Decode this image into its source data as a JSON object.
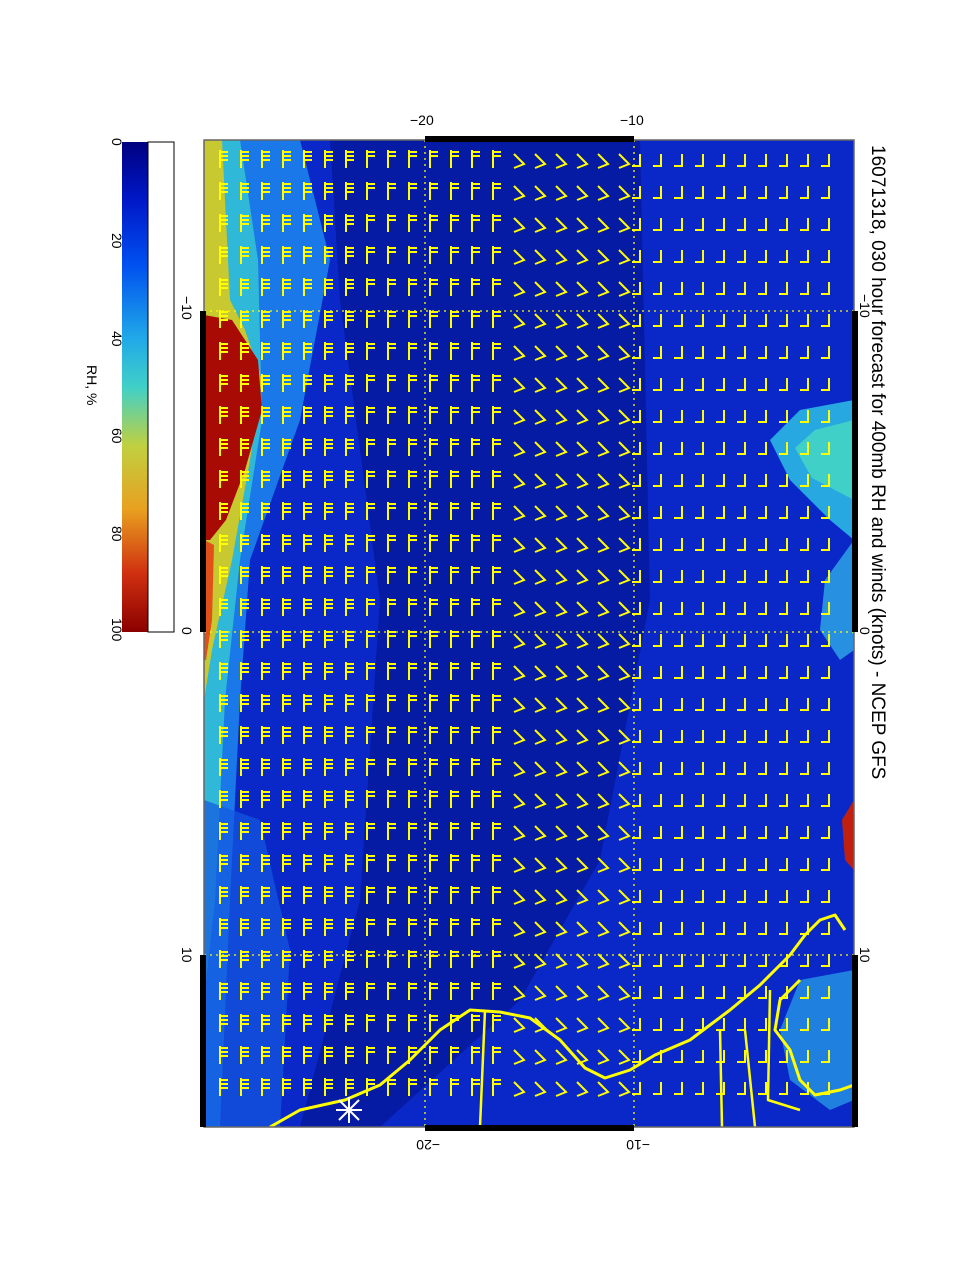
{
  "map": {
    "title": "16071318, 030 hour forecast for 400mb RH and winds (knots) - NCEP GFS",
    "variable": "400mb RH and winds (knots)",
    "source": "NCEP GFS",
    "orientation": "rotated 90 degrees clockwise",
    "top_axis_ticks": [
      "−20",
      "−10"
    ],
    "bottom_axis_ticks": [
      "−20",
      "−10"
    ],
    "left_axis_ticks": [
      "−10",
      "0",
      "10"
    ],
    "right_axis_ticks": [
      "−10",
      "0",
      "10"
    ],
    "colorbar": {
      "label": "RH, %",
      "ticks": [
        "0",
        "20",
        "40",
        "60",
        "80",
        "100"
      ],
      "colors": [
        "#000080",
        "#0018c8",
        "#0050f0",
        "#20a8e8",
        "#40d0c8",
        "#c0d040",
        "#e8a020",
        "#d03010",
        "#8a0000"
      ]
    },
    "colors": {
      "background_field": "#0a28c8",
      "wind_barbs": "#ffff00",
      "coastline": "#ffff00",
      "graticule": "#ffff00",
      "marker": "#ffffff"
    }
  }
}
